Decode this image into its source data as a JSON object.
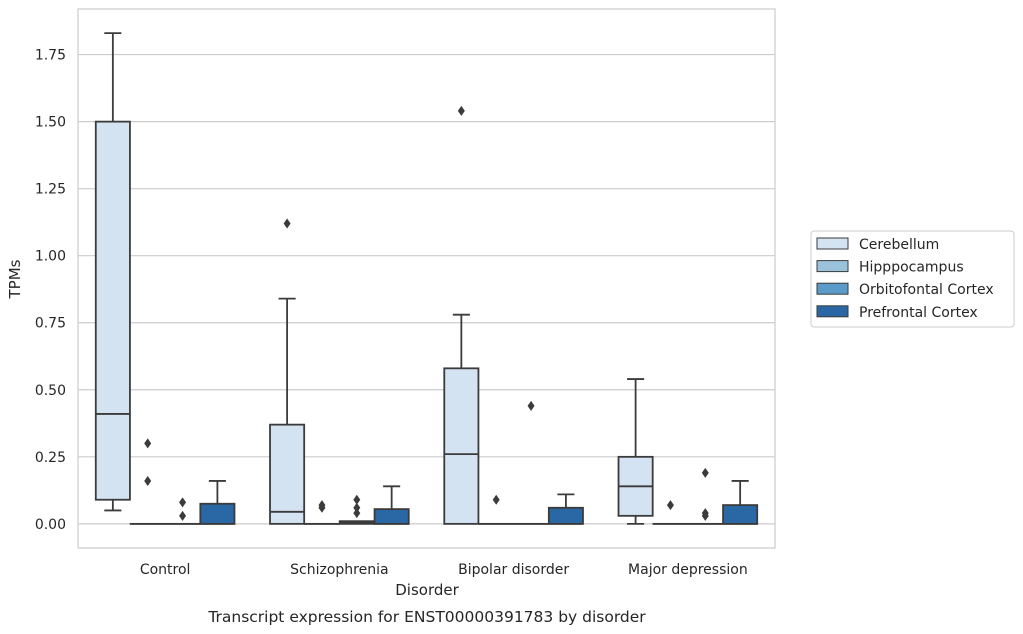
{
  "chart_data": {
    "type": "box",
    "title": "",
    "caption": "Transcript expression for ENST00000391783 by disorder",
    "xlabel": "Disorder",
    "ylabel": "TPMs",
    "ylim": [
      -0.09,
      1.92
    ],
    "yticks": [
      0.0,
      0.25,
      0.5,
      0.75,
      1.0,
      1.25,
      1.5,
      1.75
    ],
    "ytick_labels": [
      "0.00",
      "0.25",
      "0.50",
      "0.75",
      "1.00",
      "1.25",
      "1.50",
      "1.75"
    ],
    "grid": true,
    "legend_position": "right",
    "categories": [
      "Control",
      "Schizophrenia",
      "Bipolar disorder",
      "Major depression"
    ],
    "series": [
      {
        "name": "Cerebellum",
        "color": "#d4e3f2",
        "boxes": [
          {
            "whisker_low": 0.05,
            "q1": 0.09,
            "median": 0.41,
            "q3": 1.5,
            "whisker_high": 1.83,
            "outliers": []
          },
          {
            "whisker_low": 0.0,
            "q1": 0.0,
            "median": 0.045,
            "q3": 0.37,
            "whisker_high": 0.84,
            "outliers": [
              1.12
            ]
          },
          {
            "whisker_low": 0.0,
            "q1": 0.0,
            "median": 0.26,
            "q3": 0.58,
            "whisker_high": 0.78,
            "outliers": [
              1.54
            ]
          },
          {
            "whisker_low": 0.0,
            "q1": 0.03,
            "median": 0.14,
            "q3": 0.25,
            "whisker_high": 0.54,
            "outliers": []
          }
        ]
      },
      {
        "name": "Hipppocampus",
        "color": "#9ac3db",
        "boxes": [
          {
            "whisker_low": 0.0,
            "q1": 0.0,
            "median": 0.0,
            "q3": 0.0,
            "whisker_high": 0.0,
            "outliers": [
              0.16,
              0.3
            ]
          },
          {
            "whisker_low": 0.0,
            "q1": 0.0,
            "median": 0.0,
            "q3": 0.0,
            "whisker_high": 0.0,
            "outliers": [
              0.06,
              0.07
            ]
          },
          {
            "whisker_low": 0.0,
            "q1": 0.0,
            "median": 0.0,
            "q3": 0.0,
            "whisker_high": 0.0,
            "outliers": [
              0.09
            ]
          },
          {
            "whisker_low": 0.0,
            "q1": 0.0,
            "median": 0.0,
            "q3": 0.0,
            "whisker_high": 0.0,
            "outliers": [
              0.07
            ]
          }
        ]
      },
      {
        "name": "Orbitofontal Cortex",
        "color": "#5a9bc9",
        "boxes": [
          {
            "whisker_low": 0.0,
            "q1": 0.0,
            "median": 0.0,
            "q3": 0.0,
            "whisker_high": 0.0,
            "outliers": [
              0.03,
              0.08
            ]
          },
          {
            "whisker_low": 0.0,
            "q1": 0.0,
            "median": 0.005,
            "q3": 0.01,
            "whisker_high": 0.01,
            "outliers": [
              0.04,
              0.06,
              0.09
            ]
          },
          {
            "whisker_low": 0.0,
            "q1": 0.0,
            "median": 0.0,
            "q3": 0.0,
            "whisker_high": 0.0,
            "outliers": [
              0.44
            ]
          },
          {
            "whisker_low": 0.0,
            "q1": 0.0,
            "median": 0.0,
            "q3": 0.0,
            "whisker_high": 0.0,
            "outliers": [
              0.03,
              0.04,
              0.19
            ]
          }
        ]
      },
      {
        "name": "Prefrontal Cortex",
        "color": "#2a67a5",
        "boxes": [
          {
            "whisker_low": 0.0,
            "q1": 0.0,
            "median": 0.0,
            "q3": 0.075,
            "whisker_high": 0.16,
            "outliers": []
          },
          {
            "whisker_low": 0.0,
            "q1": 0.0,
            "median": 0.0,
            "q3": 0.055,
            "whisker_high": 0.14,
            "outliers": []
          },
          {
            "whisker_low": 0.0,
            "q1": 0.0,
            "median": 0.0,
            "q3": 0.06,
            "whisker_high": 0.11,
            "outliers": []
          },
          {
            "whisker_low": 0.0,
            "q1": 0.0,
            "median": 0.0,
            "q3": 0.07,
            "whisker_high": 0.16,
            "outliers": []
          }
        ]
      }
    ]
  }
}
